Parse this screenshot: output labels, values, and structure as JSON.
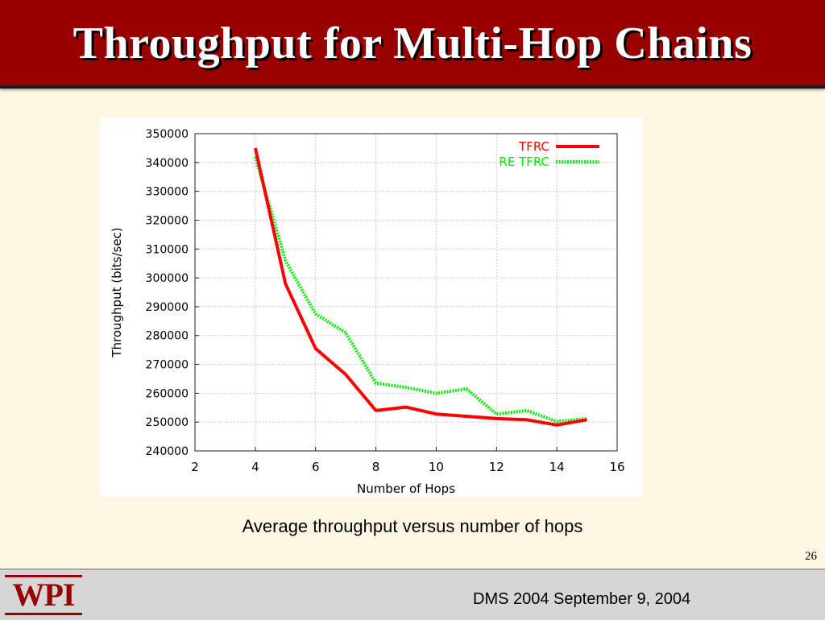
{
  "slide": {
    "title": "Throughput for Multi-Hop Chains",
    "caption": "Average throughput versus number of hops",
    "page_number": "26",
    "footer_text": "DMS 2004 September 9, 2004",
    "logo_text": "WPI"
  },
  "colors": {
    "title_bar": "#990000",
    "background": "#fdf6e3",
    "tfrc": "#ff0000",
    "re_tfrc": "#00ee00",
    "grid": "#c8c8c8"
  },
  "chart_data": {
    "type": "line",
    "title": "",
    "xlabel": "Number of Hops",
    "ylabel": "Throughput (bits/sec)",
    "xlim": [
      2,
      16
    ],
    "ylim": [
      240000,
      350000
    ],
    "x_ticks": [
      2,
      4,
      6,
      8,
      10,
      12,
      14,
      16
    ],
    "y_ticks": [
      240000,
      250000,
      260000,
      270000,
      280000,
      290000,
      300000,
      310000,
      320000,
      330000,
      340000,
      350000
    ],
    "grid": true,
    "legend_position": "top-right",
    "x": [
      4,
      5,
      6,
      7,
      8,
      9,
      10,
      11,
      12,
      13,
      14,
      15
    ],
    "series": [
      {
        "name": "TFRC",
        "style": "solid",
        "color": "#ff0000",
        "values": [
          345000,
          298000,
          275500,
          266500,
          254000,
          255200,
          252800,
          252000,
          251200,
          250800,
          249000,
          250800
        ]
      },
      {
        "name": "RE TFRC",
        "style": "dotted",
        "color": "#00ee00",
        "values": [
          342000,
          306000,
          287500,
          281000,
          263500,
          262000,
          260000,
          261500,
          252800,
          254000,
          250200,
          251200
        ]
      }
    ]
  }
}
